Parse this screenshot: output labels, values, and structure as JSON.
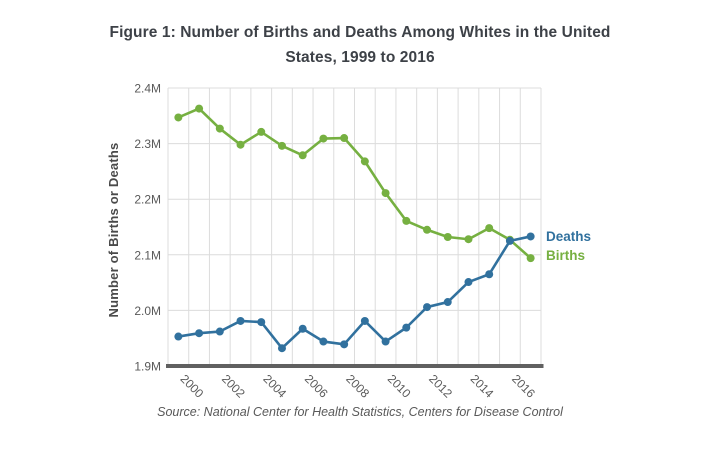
{
  "title": {
    "line1": "Figure 1: Number of Births and Deaths Among Whites in the United",
    "line2": "States, 1999 to 2016"
  },
  "source_note": "Source: National Center for Health Statistics, Centers for Disease Control",
  "colors": {
    "births_green": "#76b041",
    "deaths_blue": "#31719e",
    "gridline": "#dcdcdc",
    "axis_line": "#606060",
    "title_text": "#3d4147",
    "tick_text": "#595959",
    "source_text": "#595959"
  },
  "chart_data": {
    "type": "line",
    "title": "Figure 1: Number of Births and Deaths Among Whites in the United States, 1999 to 2016",
    "ylabel": "Number of Births or Deaths",
    "xlabel": "",
    "unit": "millions",
    "x": [
      1999,
      2000,
      2001,
      2002,
      2003,
      2004,
      2005,
      2006,
      2007,
      2008,
      2009,
      2010,
      2011,
      2012,
      2013,
      2014,
      2015,
      2016
    ],
    "series": [
      {
        "name": "Births",
        "color": "#76b041",
        "values": [
          2.347,
          2.363,
          2.327,
          2.298,
          2.321,
          2.296,
          2.279,
          2.309,
          2.31,
          2.268,
          2.211,
          2.161,
          2.145,
          2.132,
          2.128,
          2.148,
          2.127,
          2.094
        ]
      },
      {
        "name": "Deaths",
        "color": "#31719e",
        "values": [
          1.953,
          1.959,
          1.962,
          1.981,
          1.979,
          1.932,
          1.967,
          1.944,
          1.939,
          1.981,
          1.944,
          1.969,
          2.006,
          2.015,
          2.051,
          2.065,
          2.125,
          2.133
        ]
      }
    ],
    "ylim": [
      1.9,
      2.4
    ],
    "yticks": [
      1.9,
      2.0,
      2.1,
      2.2,
      2.3,
      2.4
    ],
    "ytick_labels": [
      "1.9M",
      "2.0M",
      "2.1M",
      "2.2M",
      "2.3M",
      "2.4M"
    ],
    "xtick_labels": [
      "2000",
      "2002",
      "2004",
      "2006",
      "2008",
      "2010",
      "2012",
      "2014",
      "2016"
    ],
    "grid": true,
    "legend": {
      "deaths_label": "Deaths",
      "births_label": "Births",
      "position": "right-of-line-ends"
    }
  }
}
